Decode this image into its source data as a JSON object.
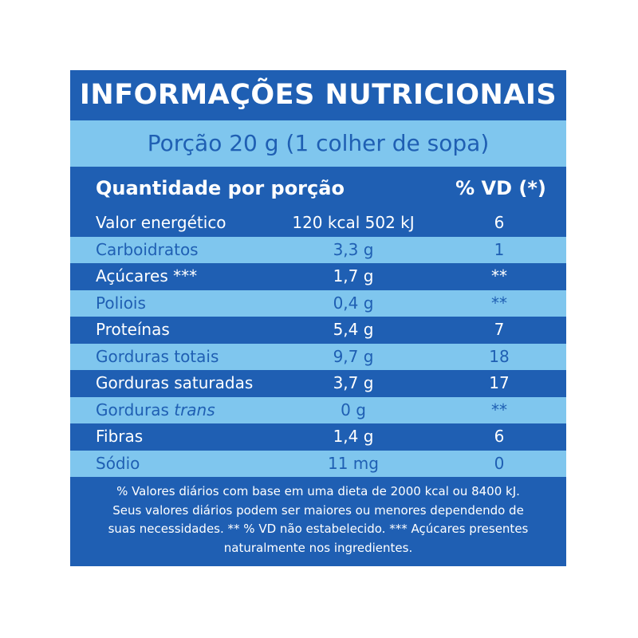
{
  "title": "INFORMAÇÕES NUTRICIONAIS",
  "portion": "Porção 20 g (1 colher de sopa)",
  "header": {
    "quantity": "Quantidade por porção",
    "vd": "% VD (*)"
  },
  "rows": [
    {
      "name": "Valor energético",
      "amount": "120 kcal 502 kJ",
      "vd": "6"
    },
    {
      "name": "Carboidratos",
      "amount": "3,3 g",
      "vd": "1"
    },
    {
      "name": "Açúcares ***",
      "amount": "1,7 g",
      "vd": "**"
    },
    {
      "name": "Poliois",
      "amount": "0,4 g",
      "vd": "**"
    },
    {
      "name": "Proteínas",
      "amount": "5,4 g",
      "vd": "7"
    },
    {
      "name": "Gorduras totais",
      "amount": "9,7 g",
      "vd": "18"
    },
    {
      "name": "Gorduras saturadas",
      "amount": "3,7 g",
      "vd": "17"
    },
    {
      "name": "Gorduras",
      "name_italic": "trans",
      "amount": "0 g",
      "vd": "**"
    },
    {
      "name": "Fibras",
      "amount": "1,4 g",
      "vd": "6"
    },
    {
      "name": "Sódio",
      "amount": "11 mg",
      "vd": "0"
    }
  ],
  "footnote": {
    "line1": "% Valores diários com base em uma dieta de 2000 kcal ou 8400 kJ.",
    "line2": "Seus valores diários podem ser maiores ou menores dependendo de",
    "line3": "suas necessidades. ** % VD não estabelecido. *** Açúcares presentes",
    "line4": "naturalmente nos ingredientes."
  },
  "colors": {
    "dark_blue": "#1f5fb3",
    "light_blue": "#7fc6ee",
    "text_light": "#ffffff"
  }
}
